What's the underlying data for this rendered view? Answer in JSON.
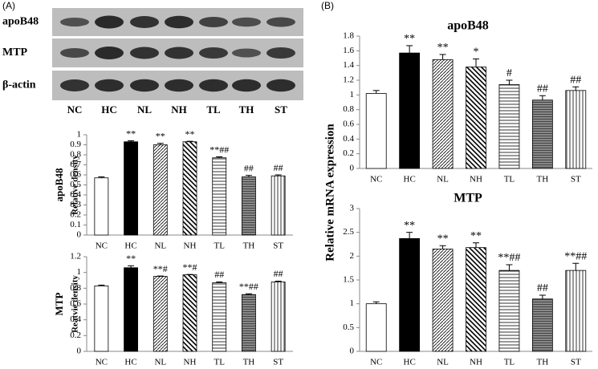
{
  "panels": [
    "(A)",
    "(B)"
  ],
  "blot": {
    "rows": [
      "apoB48",
      "MTP",
      "β-actin"
    ],
    "lanes": [
      "NC",
      "HC",
      "NL",
      "NH",
      "TL",
      "TH",
      "ST"
    ]
  },
  "panel_b_ylabel": "Relative mRNA expression",
  "chart_data": [
    {
      "type": "bar",
      "title": "apoB48",
      "ylabel": "Relative density",
      "categories": [
        "NC",
        "HC",
        "NL",
        "NH",
        "TL",
        "TH",
        "ST"
      ],
      "values": [
        0.57,
        0.93,
        0.9,
        0.93,
        0.77,
        0.58,
        0.59
      ],
      "errors": [
        0.01,
        0.01,
        0.015,
        0.005,
        0.01,
        0.015,
        0.01
      ],
      "annotations": [
        null,
        "**",
        "**",
        "**",
        "**##",
        "##",
        "##"
      ],
      "ylim": [
        0,
        1
      ],
      "yticks": [
        0,
        0.1,
        0.2,
        0.3,
        0.4,
        0.5,
        0.6,
        0.7,
        0.8,
        0.9,
        1
      ]
    },
    {
      "type": "bar",
      "title": "MTP",
      "ylabel": "Reatvie density",
      "categories": [
        "NC",
        "HC",
        "NL",
        "NH",
        "TL",
        "TH",
        "ST"
      ],
      "values": [
        0.83,
        1.06,
        0.95,
        0.97,
        0.87,
        0.72,
        0.88
      ],
      "errors": [
        0.01,
        0.025,
        0.005,
        0.005,
        0.01,
        0.01,
        0.01
      ],
      "annotations": [
        null,
        "**",
        "**#",
        "**#",
        "##",
        "**##",
        "##"
      ],
      "ylim": [
        0,
        1.2
      ],
      "yticks": [
        0,
        0.2,
        0.4,
        0.6,
        0.8,
        1,
        1.2
      ]
    },
    {
      "type": "bar",
      "title": "apoB48",
      "categories": [
        "NC",
        "HC",
        "NL",
        "NH",
        "TL",
        "TH",
        "ST"
      ],
      "values": [
        1.02,
        1.57,
        1.48,
        1.38,
        1.14,
        0.93,
        1.06
      ],
      "errors": [
        0.04,
        0.1,
        0.07,
        0.11,
        0.06,
        0.06,
        0.05
      ],
      "annotations": [
        null,
        "**",
        "**",
        "*",
        "#",
        "##",
        "##"
      ],
      "ylim": [
        0,
        1.8
      ],
      "yticks": [
        0,
        0.2,
        0.4,
        0.6,
        0.8,
        1,
        1.2,
        1.4,
        1.6,
        1.8
      ]
    },
    {
      "type": "bar",
      "title": "MTP",
      "categories": [
        "NC",
        "HC",
        "NL",
        "NH",
        "TL",
        "TH",
        "ST"
      ],
      "values": [
        1,
        2.37,
        2.15,
        2.18,
        1.7,
        1.1,
        1.7
      ],
      "errors": [
        0.04,
        0.13,
        0.07,
        0.1,
        0.12,
        0.08,
        0.15
      ],
      "annotations": [
        null,
        "**",
        "**",
        "**",
        "**##",
        "##",
        "**##"
      ],
      "ylim": [
        0,
        3
      ],
      "yticks": [
        0,
        0.5,
        1,
        1.5,
        2,
        2.5,
        3
      ]
    }
  ]
}
